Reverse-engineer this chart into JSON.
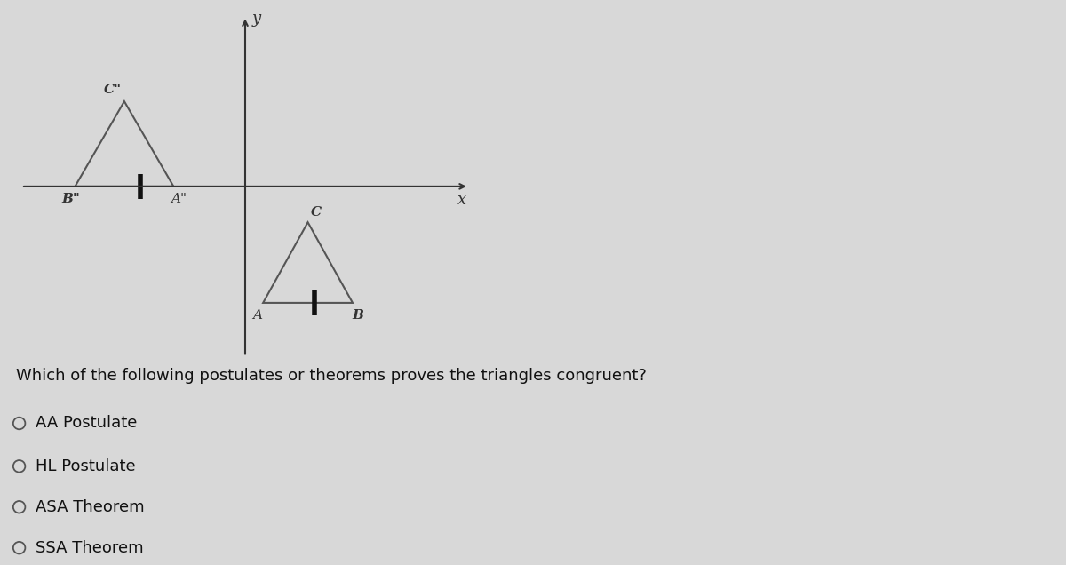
{
  "bg_color": "#d8d8d8",
  "axis_color": "#333333",
  "triangle_color": "#555555",
  "tick_mark_color": "#111111",
  "label_color": "#333333",
  "triangle1": {
    "A": [
      -1.6,
      0.0
    ],
    "B": [
      -3.8,
      0.0
    ],
    "C": [
      -2.7,
      1.9
    ],
    "label_A": "A\"",
    "label_B": "B\"",
    "label_C": "C\""
  },
  "triangle2": {
    "A": [
      0.4,
      -2.6
    ],
    "B": [
      2.4,
      -2.6
    ],
    "C": [
      1.4,
      -0.8
    ],
    "label_A": "A",
    "label_B": "B",
    "label_C": "C"
  },
  "x_range": [
    -5.0,
    5.0
  ],
  "y_range": [
    -3.8,
    3.8
  ],
  "question": "Which of the following postulates or theorems proves the triangles congruent?",
  "options": [
    "AA Postulate",
    "HL Postulate",
    "ASA Theorem",
    "SSA Theorem"
  ]
}
